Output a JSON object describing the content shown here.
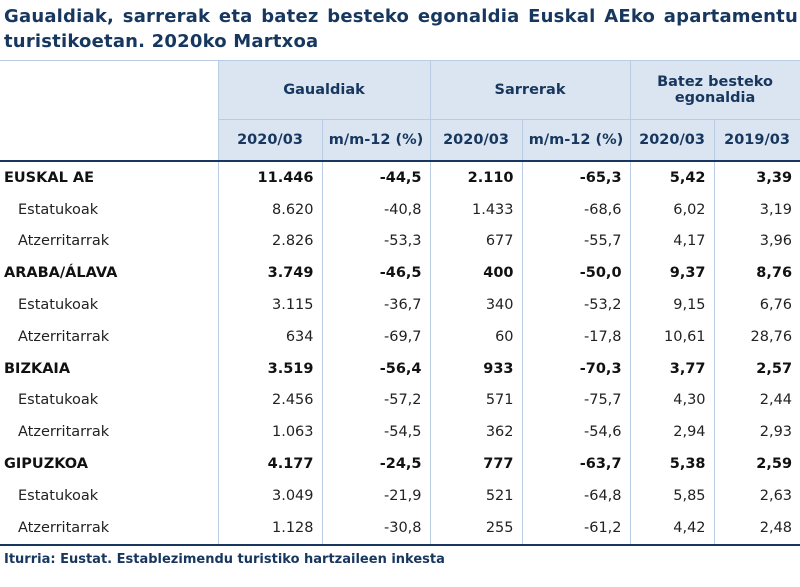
{
  "title": "Gaualdiak, sarrerak eta batez besteko egonaldia Euskal AEko apartamentu turistikoetan. 2020ko Martxoa",
  "table": {
    "header_groups": [
      "Gaualdiak",
      "Sarrerak",
      "Batez besteko egonaldia"
    ],
    "subheaders": [
      "2020/03",
      "m/m-12 (%)",
      "2020/03",
      "m/m-12 (%)",
      "2020/03",
      "2019/03"
    ],
    "groups": [
      {
        "label": "EUSKAL AE",
        "values": [
          "11.446",
          "-44,5",
          "2.110",
          "-65,3",
          "5,42",
          "3,39"
        ],
        "rows": [
          {
            "label": "Estatukoak",
            "values": [
              "8.620",
              "-40,8",
              "1.433",
              "-68,6",
              "6,02",
              "3,19"
            ]
          },
          {
            "label": "Atzerritarrak",
            "values": [
              "2.826",
              "-53,3",
              "677",
              "-55,7",
              "4,17",
              "3,96"
            ]
          }
        ]
      },
      {
        "label": "ARABA/ÁLAVA",
        "values": [
          "3.749",
          "-46,5",
          "400",
          "-50,0",
          "9,37",
          "8,76"
        ],
        "rows": [
          {
            "label": "Estatukoak",
            "values": [
              "3.115",
              "-36,7",
              "340",
              "-53,2",
              "9,15",
              "6,76"
            ]
          },
          {
            "label": "Atzerritarrak",
            "values": [
              "634",
              "-69,7",
              "60",
              "-17,8",
              "10,61",
              "28,76"
            ]
          }
        ]
      },
      {
        "label": "BIZKAIA",
        "values": [
          "3.519",
          "-56,4",
          "933",
          "-70,3",
          "3,77",
          "2,57"
        ],
        "rows": [
          {
            "label": "Estatukoak",
            "values": [
              "2.456",
              "-57,2",
              "571",
              "-75,7",
              "4,30",
              "2,44"
            ]
          },
          {
            "label": "Atzerritarrak",
            "values": [
              "1.063",
              "-54,5",
              "362",
              "-54,6",
              "2,94",
              "2,93"
            ]
          }
        ]
      },
      {
        "label": "GIPUZKOA",
        "values": [
          "4.177",
          "-24,5",
          "777",
          "-63,7",
          "5,38",
          "2,59"
        ],
        "rows": [
          {
            "label": "Estatukoak",
            "values": [
              "3.049",
              "-21,9",
              "521",
              "-64,8",
              "5,85",
              "2,63"
            ]
          },
          {
            "label": "Atzerritarrak",
            "values": [
              "1.128",
              "-30,8",
              "255",
              "-61,2",
              "4,42",
              "2,48"
            ]
          }
        ]
      }
    ]
  },
  "source": "Iturria: Eustat. Establezimendu turistiko hartzaileen inkesta"
}
